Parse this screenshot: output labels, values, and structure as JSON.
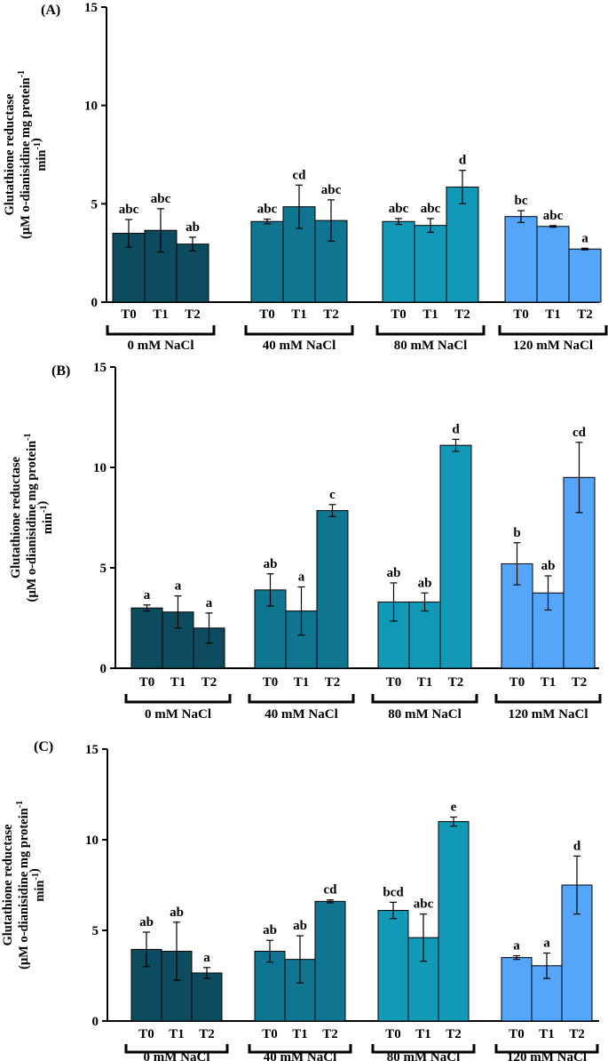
{
  "colors": {
    "g0": "#0d4b5e",
    "g1": "#0f7590",
    "g2": "#1199b7",
    "g3": "#55a5fb"
  },
  "chart_data": [
    {
      "type": "bar",
      "panel_label": "(A)",
      "ylabel_lines": [
        "Glutathione reductase",
        "(µM o-dianisidine mg protein-1",
        "min-1)"
      ],
      "ylim": [
        0,
        15
      ],
      "yticks": [
        0,
        5,
        10,
        15
      ],
      "treatments": [
        "T0",
        "T1",
        "T2"
      ],
      "groups": [
        {
          "name": "0 mM NaCl",
          "values": [
            3.5,
            3.65,
            2.95
          ],
          "errors": [
            0.7,
            1.1,
            0.35
          ],
          "letters": [
            "abc",
            "abc",
            "ab"
          ]
        },
        {
          "name": "40 mM NaCl",
          "values": [
            4.1,
            4.85,
            4.15
          ],
          "errors": [
            0.12,
            1.1,
            1.05
          ],
          "letters": [
            "abc",
            "cd",
            "abc"
          ]
        },
        {
          "name": "80 mM NaCl",
          "values": [
            4.1,
            3.9,
            5.85
          ],
          "errors": [
            0.15,
            0.35,
            0.85
          ],
          "letters": [
            "abc",
            "abc",
            "d"
          ]
        },
        {
          "name": "120 mM NaCl",
          "values": [
            4.35,
            3.85,
            2.7
          ],
          "errors": [
            0.3,
            0.04,
            0.04
          ],
          "letters": [
            "bc",
            "abc",
            "a"
          ]
        }
      ]
    },
    {
      "type": "bar",
      "panel_label": "(B)",
      "ylabel_lines": [
        "Glutathione reductase",
        "(µM o-dianisidine mg protein-1",
        "min-1)"
      ],
      "ylim": [
        0,
        15
      ],
      "yticks": [
        0,
        5,
        10,
        15
      ],
      "treatments": [
        "T0",
        "T1",
        "T2"
      ],
      "groups": [
        {
          "name": "0 mM NaCl",
          "values": [
            3.0,
            2.8,
            2.0
          ],
          "errors": [
            0.15,
            0.8,
            0.75
          ],
          "letters": [
            "a",
            "a",
            "a"
          ]
        },
        {
          "name": "40 mM NaCl",
          "values": [
            3.9,
            2.85,
            7.85
          ],
          "errors": [
            0.8,
            1.2,
            0.3
          ],
          "letters": [
            "ab",
            "a",
            "c"
          ]
        },
        {
          "name": "80 mM NaCl",
          "values": [
            3.3,
            3.3,
            11.1
          ],
          "errors": [
            0.95,
            0.45,
            0.3
          ],
          "letters": [
            "ab",
            "ab",
            "d"
          ]
        },
        {
          "name": "120 mM NaCl",
          "values": [
            5.2,
            3.75,
            9.5
          ],
          "errors": [
            1.05,
            0.85,
            1.75
          ],
          "letters": [
            "b",
            "ab",
            "cd"
          ]
        }
      ]
    },
    {
      "type": "bar",
      "panel_label": "(C)",
      "ylabel_lines": [
        "Glutathione reductase",
        "(µM o-dianisidine mg protein-1",
        "min-1)"
      ],
      "ylim": [
        0,
        15
      ],
      "yticks": [
        0,
        5,
        10,
        15
      ],
      "treatments": [
        "T0",
        "T1",
        "T2"
      ],
      "groups": [
        {
          "name": "0 mM NaCl",
          "values": [
            3.95,
            3.85,
            2.65
          ],
          "errors": [
            0.95,
            1.6,
            0.3
          ],
          "letters": [
            "ab",
            "ab",
            "a"
          ]
        },
        {
          "name": "40 mM NaCl",
          "values": [
            3.85,
            3.4,
            6.6
          ],
          "errors": [
            0.6,
            1.3,
            0.08
          ],
          "letters": [
            "ab",
            "ab",
            "cd"
          ]
        },
        {
          "name": "80 mM NaCl",
          "values": [
            6.1,
            4.6,
            11.0
          ],
          "errors": [
            0.45,
            1.3,
            0.25
          ],
          "letters": [
            "bcd",
            "abc",
            "e"
          ]
        },
        {
          "name": "120 mM NaCl",
          "values": [
            3.5,
            3.05,
            7.5
          ],
          "errors": [
            0.1,
            0.7,
            1.6
          ],
          "letters": [
            "a",
            "a",
            "d"
          ]
        }
      ]
    }
  ]
}
